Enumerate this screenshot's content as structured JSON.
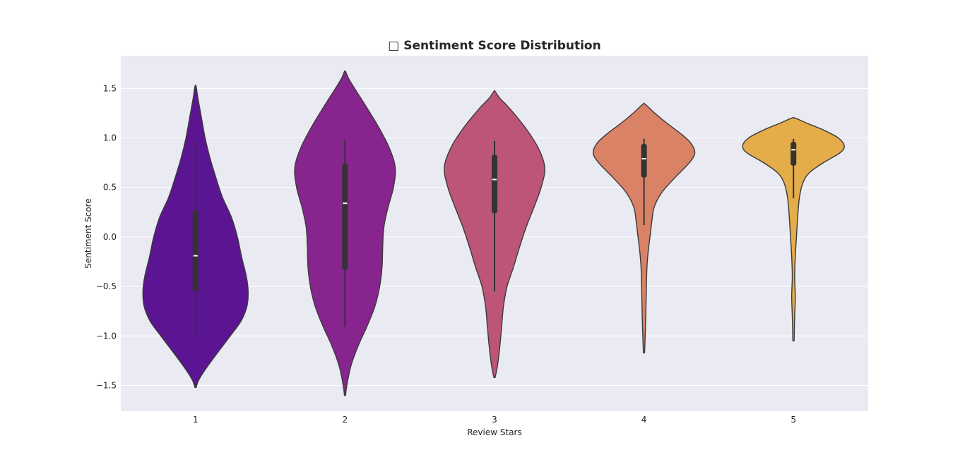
{
  "chart_data": {
    "type": "violin",
    "title": "□ Sentiment Score Distribution",
    "xlabel": "Review Stars",
    "ylabel": "Sentiment Score",
    "categories": [
      "1",
      "2",
      "3",
      "4",
      "5"
    ],
    "yticks": [
      "−1.5",
      "−1.0",
      "−0.5",
      "0.0",
      "0.5",
      "1.0",
      "1.5"
    ],
    "ylim": [
      -1.76,
      1.83
    ],
    "grid": true,
    "background_color": "#eaeaf2",
    "colors": [
      "#5c1592",
      "#88248e",
      "#bd5579",
      "#d98266",
      "#e5ac4a"
    ],
    "violins": [
      {
        "category": "1",
        "profile": [
          [
            -1.52,
            0.01
          ],
          [
            -1.45,
            0.05
          ],
          [
            -1.35,
            0.15
          ],
          [
            -1.2,
            0.33
          ],
          [
            -1.0,
            0.58
          ],
          [
            -0.85,
            0.76
          ],
          [
            -0.7,
            0.86
          ],
          [
            -0.55,
            0.88
          ],
          [
            -0.4,
            0.85
          ],
          [
            -0.2,
            0.77
          ],
          [
            0.0,
            0.7
          ],
          [
            0.2,
            0.6
          ],
          [
            0.4,
            0.45
          ],
          [
            0.6,
            0.34
          ],
          [
            0.8,
            0.24
          ],
          [
            1.0,
            0.16
          ],
          [
            1.2,
            0.1
          ],
          [
            1.4,
            0.04
          ],
          [
            1.52,
            0.01
          ]
        ],
        "median": -0.19,
        "q1": -0.55,
        "q3": 0.27,
        "whisker_low": -0.97,
        "whisker_high": 0.96
      },
      {
        "category": "2",
        "profile": [
          [
            -1.6,
            0.01
          ],
          [
            -1.5,
            0.03
          ],
          [
            -1.3,
            0.1
          ],
          [
            -1.1,
            0.22
          ],
          [
            -0.9,
            0.37
          ],
          [
            -0.7,
            0.5
          ],
          [
            -0.5,
            0.58
          ],
          [
            -0.3,
            0.62
          ],
          [
            -0.1,
            0.63
          ],
          [
            0.1,
            0.65
          ],
          [
            0.3,
            0.72
          ],
          [
            0.5,
            0.81
          ],
          [
            0.7,
            0.84
          ],
          [
            0.9,
            0.74
          ],
          [
            1.1,
            0.57
          ],
          [
            1.3,
            0.37
          ],
          [
            1.5,
            0.16
          ],
          [
            1.6,
            0.06
          ],
          [
            1.67,
            0.01
          ]
        ],
        "median": 0.34,
        "q1": -0.33,
        "q3": 0.74,
        "whisker_low": -0.91,
        "whisker_high": 0.98
      },
      {
        "category": "3",
        "profile": [
          [
            -1.42,
            0.01
          ],
          [
            -1.3,
            0.05
          ],
          [
            -1.1,
            0.09
          ],
          [
            -0.9,
            0.12
          ],
          [
            -0.7,
            0.15
          ],
          [
            -0.5,
            0.21
          ],
          [
            -0.3,
            0.32
          ],
          [
            -0.1,
            0.42
          ],
          [
            0.1,
            0.53
          ],
          [
            0.3,
            0.66
          ],
          [
            0.5,
            0.78
          ],
          [
            0.7,
            0.84
          ],
          [
            0.9,
            0.73
          ],
          [
            1.1,
            0.52
          ],
          [
            1.3,
            0.25
          ],
          [
            1.4,
            0.09
          ],
          [
            1.47,
            0.01
          ]
        ],
        "median": 0.58,
        "q1": 0.24,
        "q3": 0.83,
        "whisker_low": -0.55,
        "whisker_high": 0.97
      },
      {
        "category": "4",
        "profile": [
          [
            -1.17,
            0.01
          ],
          [
            -1.0,
            0.02
          ],
          [
            -0.8,
            0.03
          ],
          [
            -0.5,
            0.04
          ],
          [
            -0.3,
            0.05
          ],
          [
            -0.15,
            0.07
          ],
          [
            0.0,
            0.1
          ],
          [
            0.15,
            0.13
          ],
          [
            0.3,
            0.17
          ],
          [
            0.45,
            0.3
          ],
          [
            0.6,
            0.52
          ],
          [
            0.75,
            0.76
          ],
          [
            0.85,
            0.85
          ],
          [
            0.95,
            0.78
          ],
          [
            1.05,
            0.6
          ],
          [
            1.15,
            0.38
          ],
          [
            1.25,
            0.18
          ],
          [
            1.34,
            0.02
          ]
        ],
        "median": 0.79,
        "q1": 0.6,
        "q3": 0.94,
        "whisker_low": 0.12,
        "whisker_high": 0.99
      },
      {
        "category": "5",
        "profile": [
          [
            -1.05,
            0.01
          ],
          [
            -0.8,
            0.02
          ],
          [
            -0.6,
            0.03
          ],
          [
            -0.4,
            0.02
          ],
          [
            -0.2,
            0.03
          ],
          [
            0.0,
            0.05
          ],
          [
            0.2,
            0.07
          ],
          [
            0.4,
            0.1
          ],
          [
            0.55,
            0.16
          ],
          [
            0.65,
            0.27
          ],
          [
            0.75,
            0.5
          ],
          [
            0.85,
            0.78
          ],
          [
            0.92,
            0.85
          ],
          [
            1.0,
            0.75
          ],
          [
            1.08,
            0.5
          ],
          [
            1.15,
            0.22
          ],
          [
            1.2,
            0.03
          ]
        ],
        "median": 0.88,
        "q1": 0.72,
        "q3": 0.96,
        "whisker_low": 0.39,
        "whisker_high": 0.99
      }
    ]
  }
}
